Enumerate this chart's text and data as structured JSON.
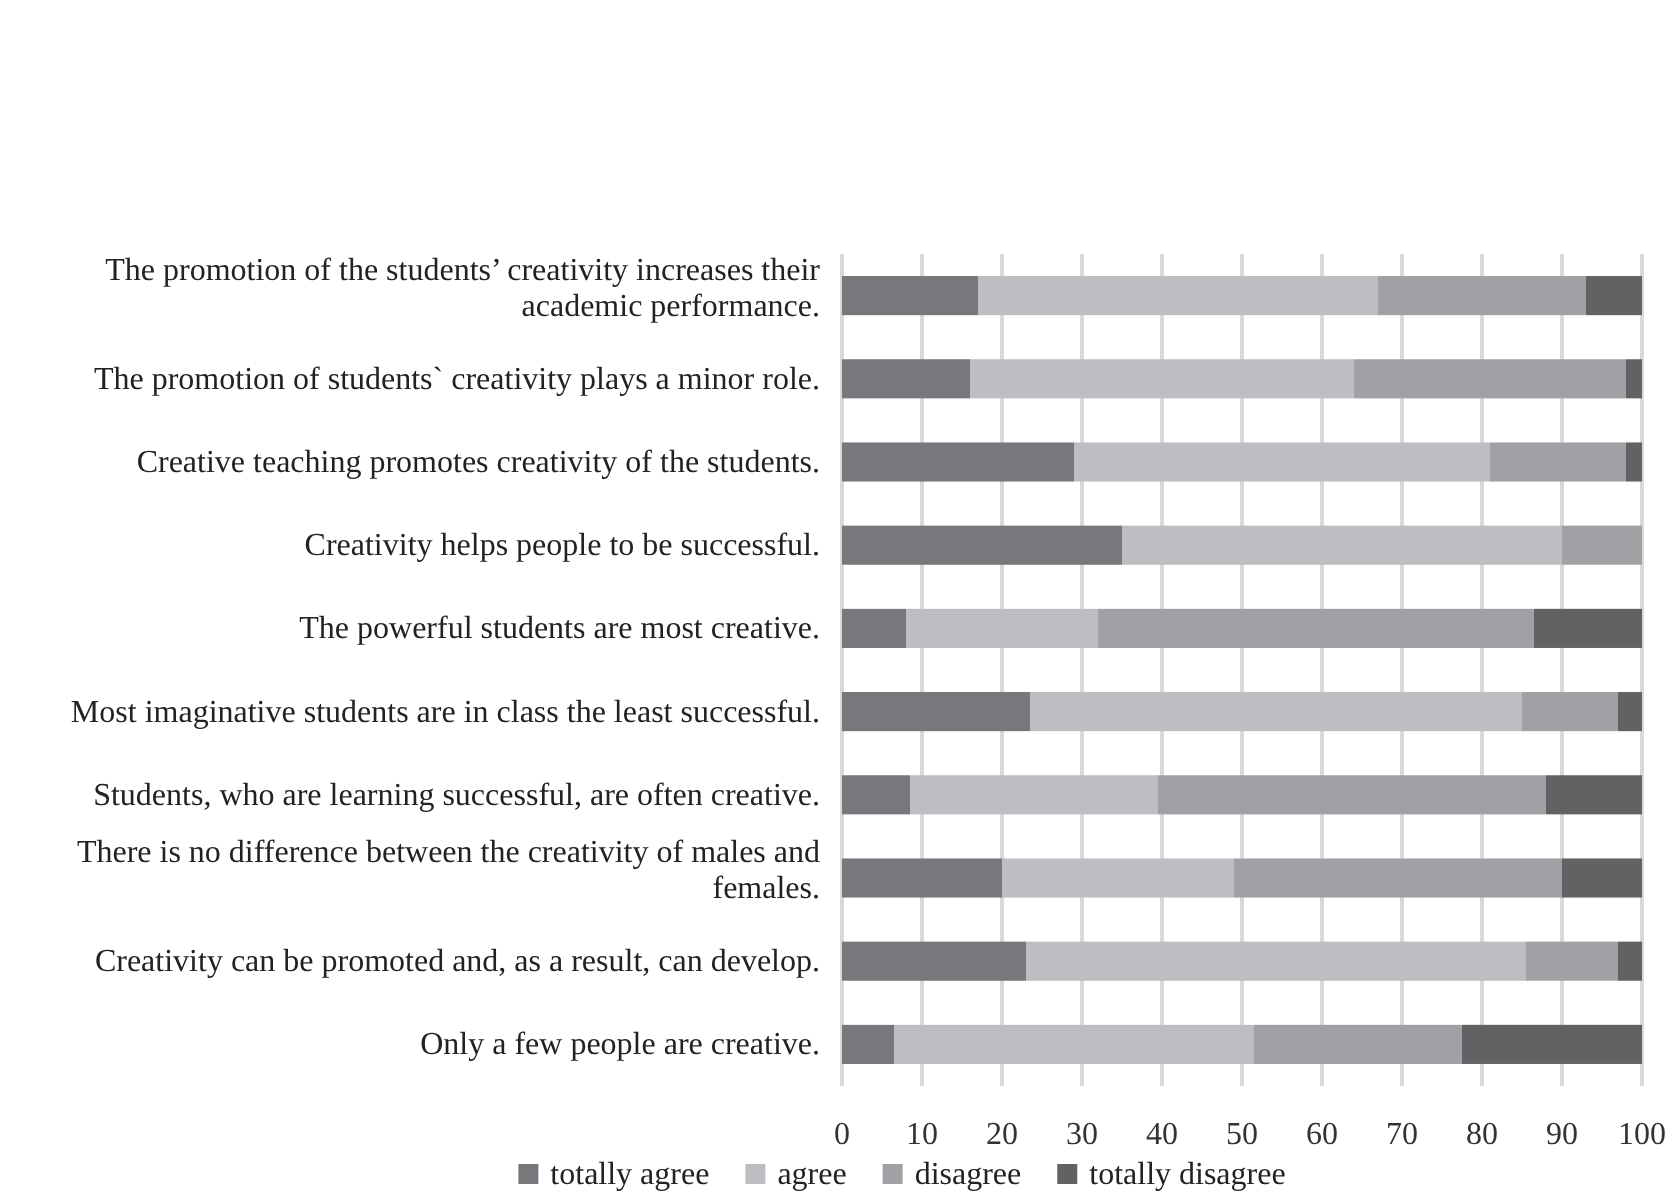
{
  "chart_data": {
    "type": "bar",
    "orientation": "horizontal",
    "stacked": true,
    "categories": [
      "The promotion of the students’ creativity increases their academic performance.",
      "The promotion of students` creativity plays a minor role.",
      "Creative teaching promotes creativity of the students.",
      "Creativity helps people to be successful.",
      "The powerful students are most creative.",
      "Most imaginative students are in class the least successful.",
      "Students, who are learning successful, are often creative.",
      "There is no difference between the creativity of males and females.",
      "Creativity can be promoted and, as a result, can develop.",
      "Only a few people are creative."
    ],
    "series": [
      {
        "name": "totally agree",
        "color": "#77787c",
        "values": [
          17,
          16,
          29,
          35,
          8,
          23.5,
          8.5,
          20,
          23,
          6.5
        ]
      },
      {
        "name": "agree",
        "color": "#bdbec1",
        "values": [
          50,
          48,
          52,
          55,
          24,
          61.5,
          31,
          29,
          62.5,
          45
        ]
      },
      {
        "name": "disagree",
        "color": "#a0a1a4",
        "values": [
          26,
          34,
          17,
          10,
          54.5,
          12,
          48.5,
          41,
          11.5,
          26
        ]
      },
      {
        "name": "totally disagree",
        "color": "#626265",
        "values": [
          7,
          2,
          2,
          0,
          13.5,
          3,
          12,
          10,
          3,
          22.5
        ]
      }
    ],
    "xlim": [
      0,
      100
    ],
    "xticks": [
      0,
      10,
      20,
      30,
      40,
      50,
      60,
      70,
      80,
      90,
      100
    ],
    "grid": "x",
    "legend": "bottom"
  }
}
